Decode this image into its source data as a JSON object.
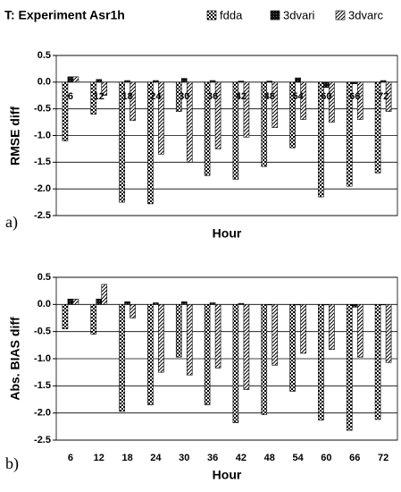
{
  "chart_data": [
    {
      "type": "bar",
      "title": "T: Experiment Asr1h",
      "ylabel": "RMSE diff",
      "xlabel": "Hour",
      "panel_label": "a)",
      "categories": [
        "6",
        "12",
        "18",
        "24",
        "30",
        "36",
        "42",
        "48",
        "54",
        "60",
        "66",
        "72"
      ],
      "series": [
        {
          "name": "fdda",
          "color": "#000000",
          "values": [
            -1.1,
            -0.6,
            -2.25,
            -2.28,
            -0.55,
            -1.75,
            -1.82,
            -1.58,
            -1.23,
            -2.15,
            -1.95,
            -1.7
          ]
        },
        {
          "name": "3dvari",
          "color": "#000000",
          "values": [
            0.1,
            0.05,
            0.03,
            0.03,
            0.07,
            0.03,
            0.02,
            0.02,
            0.08,
            -0.1,
            -0.03,
            0.03
          ]
        },
        {
          "name": "3dvarc",
          "color": "#000000",
          "values": [
            0.1,
            -0.25,
            -0.72,
            -1.35,
            -1.5,
            -1.25,
            -1.03,
            -0.85,
            -0.7,
            -0.75,
            -0.7,
            -0.55
          ]
        }
      ],
      "ylim": [
        -2.5,
        0.5
      ],
      "yticks": [
        0.5,
        {
          "value": 0,
          "label": "0.0"
        },
        -0.5,
        {
          "value": -1,
          "label": "-1.0"
        },
        -1.5,
        {
          "value": -2,
          "label": "-2.0"
        },
        -2.5
      ],
      "grid": true,
      "legend": "top-right"
    },
    {
      "type": "bar",
      "ylabel": "Abs. BIAS diff",
      "xlabel": "Hour",
      "panel_label": "b)",
      "categories": [
        "6",
        "12",
        "18",
        "24",
        "30",
        "36",
        "42",
        "48",
        "54",
        "60",
        "66",
        "72"
      ],
      "series": [
        {
          "color": "#000000",
          "values": [
            -0.45,
            -0.55,
            -1.97,
            -1.85,
            -0.97,
            -1.85,
            -2.18,
            -2.03,
            -1.6,
            -2.13,
            -2.32,
            -2.12
          ]
        },
        {
          "color": "#000000",
          "values": [
            0.1,
            0.1,
            0.05,
            0.03,
            0.05,
            0.03,
            0.02,
            0,
            0,
            0,
            -0.05,
            0
          ]
        },
        {
          "color": "#000000",
          "values": [
            0.1,
            0.37,
            -0.25,
            -1.25,
            -1.3,
            -1.17,
            -1.57,
            -1.12,
            -0.9,
            -0.83,
            -0.97,
            -1.07
          ]
        }
      ],
      "ylim": [
        -2.5,
        0.5
      ],
      "yticks": [
        0.5,
        {
          "value": 0,
          "label": "0.0"
        },
        -0.5,
        {
          "value": -1,
          "label": "-1.0"
        },
        -1.5,
        {
          "value": -2,
          "label": "-2.0"
        },
        -2.5
      ],
      "grid": true
    }
  ]
}
